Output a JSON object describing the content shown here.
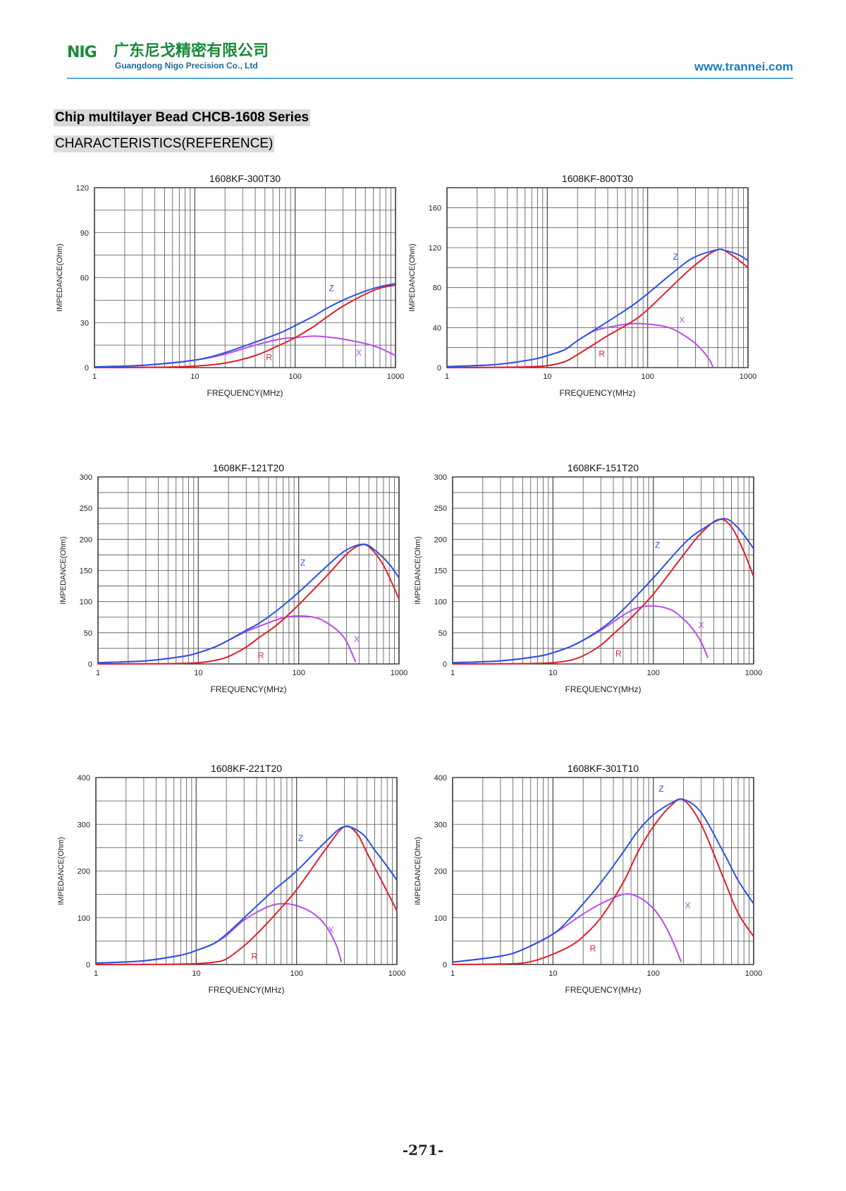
{
  "header": {
    "logo_mark": "NIG",
    "company_cn": "广东尼戈精密有限公司",
    "company_en": "Guangdong Nigo Precision Co., Ltd",
    "website": "www.trannei.com"
  },
  "section": {
    "title": "Chip multilayer Bead CHCB-1608 Series",
    "subtitle": "CHARACTERISTICS(REFERENCE)"
  },
  "page_number": "-271-",
  "colors": {
    "Z": "#2a52e0",
    "R": "#e0202a",
    "X": "#b84ee8",
    "grid": "#555555"
  },
  "chart_data": [
    {
      "type": "line",
      "title": "1608KF-300T30",
      "xlabel": "FREQUENCY(MHz)",
      "ylabel": "IMPEDANCE(Ohm)",
      "xscale": "log",
      "xlim": [
        1,
        1000
      ],
      "ylim": [
        0,
        120
      ],
      "yticks": [
        0,
        30,
        60,
        90,
        120
      ],
      "xticks": [
        1,
        10,
        100,
        1000
      ],
      "xtick_labels": [
        "1",
        "10",
        "100",
        "1000"
      ],
      "grid": true,
      "series": [
        {
          "name": "Z",
          "x": [
            1,
            3,
            10,
            20,
            40,
            70,
            100,
            150,
            200,
            300,
            500,
            700,
            1000
          ],
          "y": [
            0.5,
            1.5,
            5,
            10,
            17,
            23,
            28,
            34,
            39,
            45,
            51,
            54,
            56
          ]
        },
        {
          "name": "R",
          "x": [
            1,
            5,
            10,
            20,
            40,
            70,
            100,
            150,
            200,
            300,
            500,
            700,
            1000
          ],
          "y": [
            0,
            0.3,
            1,
            3,
            8,
            15,
            20,
            27,
            33,
            41,
            49,
            53,
            55
          ]
        },
        {
          "name": "X",
          "x": [
            1,
            3,
            10,
            20,
            40,
            70,
            100,
            150,
            200,
            300,
            500,
            700,
            1000
          ],
          "y": [
            0.5,
            1.5,
            5,
            9,
            15,
            19,
            20,
            21,
            20.5,
            19,
            16,
            13,
            8
          ]
        }
      ],
      "labels": [
        {
          "text": "Z",
          "x": 230,
          "y": 51
        },
        {
          "text": "R",
          "x": 55,
          "y": 5
        },
        {
          "text": "X",
          "x": 430,
          "y": 8
        }
      ]
    },
    {
      "type": "line",
      "title": "1608KF-800T30",
      "xlabel": "FREQUENCY(MHz)",
      "ylabel": "IMPEDANCE(Ohm)",
      "xscale": "log",
      "xlim": [
        1,
        1000
      ],
      "ylim": [
        0,
        180
      ],
      "yticks": [
        0,
        40,
        80,
        120,
        160
      ],
      "xticks": [
        1,
        10,
        100,
        1000
      ],
      "xtick_labels": [
        "1",
        "10",
        "100",
        "1000"
      ],
      "grid": true,
      "series": [
        {
          "name": "Z",
          "x": [
            1,
            3,
            7,
            10,
            15,
            20,
            40,
            70,
            100,
            200,
            300,
            500,
            600,
            800,
            1000
          ],
          "y": [
            1,
            3,
            8,
            12,
            18,
            27,
            46,
            62,
            74,
            99,
            111,
            118,
            117,
            113,
            107
          ]
        },
        {
          "name": "R",
          "x": [
            1,
            5,
            10,
            15,
            20,
            30,
            40,
            70,
            100,
            200,
            300,
            500,
            700,
            1000
          ],
          "y": [
            0,
            0.5,
            2,
            6,
            13,
            24,
            32,
            46,
            58,
            87,
            103,
            118,
            112,
            100
          ]
        },
        {
          "name": "X",
          "x": [
            1,
            3,
            7,
            10,
            15,
            20,
            30,
            50,
            70,
            100,
            150,
            200,
            300,
            400,
            450
          ],
          "y": [
            1,
            3,
            8,
            12,
            18,
            27,
            37,
            42,
            44,
            43.5,
            41,
            36,
            24,
            10,
            0
          ]
        }
      ],
      "labels": [
        {
          "text": "Z",
          "x": 190,
          "y": 108
        },
        {
          "text": "R",
          "x": 35,
          "y": 11
        },
        {
          "text": "X",
          "x": 220,
          "y": 45
        }
      ]
    },
    {
      "type": "line",
      "title": "1608KF-121T20",
      "xlabel": "FREQUENCY(MHz)",
      "ylabel": "IMPEDANCE(Ohm)",
      "xscale": "log",
      "xlim": [
        1,
        1000
      ],
      "ylim": [
        0,
        300
      ],
      "yticks": [
        0,
        50,
        100,
        150,
        200,
        250,
        300
      ],
      "xticks": [
        1,
        10,
        100,
        1000
      ],
      "xtick_labels": [
        "1",
        "10",
        "100",
        "1000"
      ],
      "grid": true,
      "series": [
        {
          "name": "Z",
          "x": [
            1,
            3,
            7,
            10,
            15,
            20,
            30,
            40,
            60,
            100,
            200,
            300,
            450,
            600,
            800,
            1000
          ],
          "y": [
            2,
            5,
            12,
            18,
            28,
            38,
            54,
            65,
            85,
            115,
            160,
            183,
            192,
            180,
            160,
            138
          ]
        },
        {
          "name": "R",
          "x": [
            1,
            5,
            10,
            15,
            20,
            30,
            40,
            60,
            100,
            200,
            300,
            400,
            500,
            700,
            1000
          ],
          "y": [
            0,
            0.5,
            2,
            6,
            12,
            27,
            42,
            62,
            95,
            145,
            176,
            190,
            188,
            158,
            104
          ]
        },
        {
          "name": "X",
          "x": [
            1,
            3,
            7,
            10,
            15,
            20,
            30,
            50,
            70,
            100,
            150,
            200,
            250,
            300,
            370
          ],
          "y": [
            2,
            5,
            12,
            18,
            28,
            38,
            52,
            66,
            74,
            77,
            74,
            64,
            52,
            36,
            3
          ]
        }
      ],
      "labels": [
        {
          "text": "Z",
          "x": 110,
          "y": 158
        },
        {
          "text": "R",
          "x": 42,
          "y": 9
        },
        {
          "text": "X",
          "x": 380,
          "y": 35
        }
      ]
    },
    {
      "type": "line",
      "title": "1608KF-151T20",
      "xlabel": "FREQUENCY(MHz)",
      "ylabel": "IMPEDANCE(Ohm)",
      "xscale": "log",
      "xlim": [
        1,
        1000
      ],
      "ylim": [
        0,
        300
      ],
      "yticks": [
        0,
        50,
        100,
        150,
        200,
        250,
        300
      ],
      "xticks": [
        1,
        10,
        100,
        1000
      ],
      "xtick_labels": [
        "1",
        "10",
        "100",
        "1000"
      ],
      "grid": true,
      "series": [
        {
          "name": "Z",
          "x": [
            1,
            3,
            7,
            10,
            15,
            20,
            30,
            40,
            60,
            100,
            200,
            300,
            500,
            700,
            1000
          ],
          "y": [
            2,
            5,
            12,
            18,
            28,
            38,
            56,
            72,
            100,
            138,
            192,
            215,
            233,
            218,
            185
          ]
        },
        {
          "name": "R",
          "x": [
            1,
            5,
            10,
            15,
            20,
            30,
            40,
            60,
            100,
            200,
            300,
            450,
            600,
            800,
            1000
          ],
          "y": [
            0,
            0.5,
            2,
            6,
            13,
            30,
            48,
            74,
            112,
            175,
            210,
            232,
            220,
            180,
            140
          ]
        },
        {
          "name": "X",
          "x": [
            1,
            3,
            7,
            10,
            15,
            20,
            30,
            50,
            70,
            100,
            150,
            200,
            250,
            300,
            350
          ],
          "y": [
            2,
            5,
            12,
            18,
            28,
            38,
            54,
            78,
            90,
            93,
            87,
            72,
            55,
            35,
            10
          ]
        }
      ],
      "labels": [
        {
          "text": "Z",
          "x": 110,
          "y": 186
        },
        {
          "text": "R",
          "x": 45,
          "y": 12
        },
        {
          "text": "X",
          "x": 300,
          "y": 58
        }
      ]
    },
    {
      "type": "line",
      "title": "1608KF-221T20",
      "xlabel": "FREQUENCY(MHz)",
      "ylabel": "IMPEDANCE(Ohm)",
      "xscale": "log",
      "xlim": [
        1,
        1000
      ],
      "ylim": [
        0,
        400
      ],
      "yticks": [
        0,
        100,
        200,
        300,
        400
      ],
      "xticks": [
        1,
        10,
        100,
        1000
      ],
      "xtick_labels": [
        "1",
        "10",
        "100",
        "1000"
      ],
      "grid": true,
      "series": [
        {
          "name": "Z",
          "x": [
            1,
            3,
            7,
            10,
            15,
            20,
            30,
            40,
            60,
            100,
            200,
            300,
            450,
            600,
            800,
            1000
          ],
          "y": [
            3,
            8,
            20,
            30,
            45,
            65,
            100,
            125,
            160,
            200,
            265,
            295,
            280,
            245,
            210,
            180
          ]
        },
        {
          "name": "R",
          "x": [
            1,
            5,
            10,
            15,
            20,
            30,
            40,
            60,
            100,
            200,
            300,
            400,
            500,
            700,
            1000
          ],
          "y": [
            0,
            0.5,
            2,
            5,
            12,
            40,
            65,
            105,
            160,
            250,
            295,
            280,
            240,
            180,
            115
          ]
        },
        {
          "name": "X",
          "x": [
            1,
            3,
            7,
            10,
            15,
            20,
            30,
            50,
            70,
            100,
            150,
            200,
            250,
            280
          ],
          "y": [
            3,
            8,
            20,
            30,
            45,
            62,
            95,
            122,
            130,
            126,
            108,
            80,
            40,
            5
          ]
        }
      ],
      "labels": [
        {
          "text": "Z",
          "x": 110,
          "y": 264
        },
        {
          "text": "R",
          "x": 38,
          "y": 11
        },
        {
          "text": "X",
          "x": 220,
          "y": 68
        }
      ]
    },
    {
      "type": "line",
      "title": "1608KF-301T10",
      "xlabel": "FREQUENCY(MHz)",
      "ylabel": "IMPEDANCE(Ohm)",
      "xscale": "log",
      "xlim": [
        1,
        1000
      ],
      "ylim": [
        0,
        400
      ],
      "yticks": [
        0,
        100,
        200,
        300,
        400
      ],
      "xticks": [
        1,
        10,
        100,
        1000
      ],
      "xtick_labels": [
        "1",
        "10",
        "100",
        "1000"
      ],
      "grid": true,
      "series": [
        {
          "name": "Z",
          "x": [
            1,
            3,
            5,
            10,
            15,
            20,
            30,
            50,
            70,
            100,
            150,
            200,
            300,
            500,
            700,
            1000
          ],
          "y": [
            5,
            18,
            32,
            65,
            100,
            130,
            175,
            240,
            285,
            320,
            345,
            353,
            325,
            240,
            180,
            130
          ]
        },
        {
          "name": "R",
          "x": [
            1,
            3,
            5,
            7,
            10,
            15,
            20,
            30,
            50,
            70,
            100,
            150,
            200,
            300,
            500,
            700,
            1000
          ],
          "y": [
            0,
            1,
            3,
            10,
            22,
            40,
            60,
            100,
            175,
            240,
            295,
            340,
            352,
            300,
            185,
            110,
            60
          ]
        },
        {
          "name": "X",
          "x": [
            1,
            3,
            5,
            10,
            15,
            20,
            30,
            50,
            70,
            100,
            130,
            160,
            190
          ],
          "y": [
            5,
            18,
            32,
            65,
            90,
            108,
            130,
            150,
            145,
            120,
            85,
            45,
            5
          ]
        }
      ],
      "labels": [
        {
          "text": "Z",
          "x": 120,
          "y": 370
        },
        {
          "text": "R",
          "x": 25,
          "y": 28
        },
        {
          "text": "X",
          "x": 220,
          "y": 120
        }
      ]
    }
  ]
}
